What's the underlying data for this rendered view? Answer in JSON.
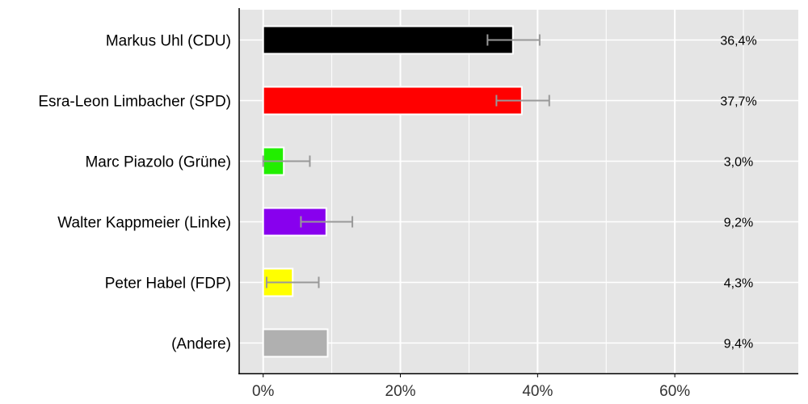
{
  "chart_data": {
    "type": "bar",
    "orientation": "horizontal",
    "categories": [
      "Markus Uhl (CDU)",
      "Esra-Leon Limbacher (SPD)",
      "Marc Piazolo (Grüne)",
      "Walter Kappmeier (Linke)",
      "Peter Habel (FDP)",
      "(Andere)"
    ],
    "values": [
      36.4,
      37.7,
      3.0,
      9.2,
      4.3,
      9.4
    ],
    "value_labels": [
      "36,4%",
      "37,7%",
      "3,0%",
      "9,2%",
      "4,3%",
      "9,4%"
    ],
    "error_low": [
      32.7,
      34.0,
      0.0,
      5.5,
      0.5,
      null
    ],
    "error_high": [
      40.3,
      41.7,
      6.8,
      13.0,
      8.1,
      null
    ],
    "colors": [
      "#000000",
      "#ff0000",
      "#22ee00",
      "#8800ee",
      "#ffff00",
      "#b0b0b0"
    ],
    "xlim": [
      -3.5,
      78
    ],
    "xticks": [
      0,
      20,
      40,
      60
    ],
    "xtick_labels": [
      "0%",
      "20%",
      "40%",
      "60%"
    ],
    "grid": true,
    "title": "",
    "xlabel": "",
    "ylabel": ""
  }
}
